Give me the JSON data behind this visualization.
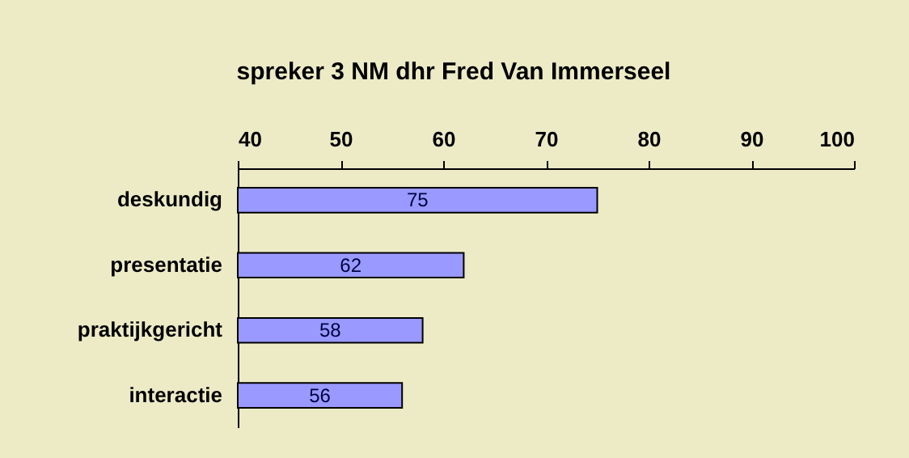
{
  "chart_data": {
    "type": "bar",
    "orientation": "horizontal",
    "title": "spreker 3 NM dhr Fred Van Immerseel",
    "categories": [
      "deskundig",
      "presentatie",
      "praktijkgericht",
      "interactie"
    ],
    "values": [
      75,
      62,
      58,
      56
    ],
    "color": "#9999ff",
    "xlim": [
      40,
      100
    ],
    "xticks": [
      40,
      50,
      60,
      70,
      80,
      90,
      100
    ],
    "grid": false,
    "data_labels": true
  }
}
